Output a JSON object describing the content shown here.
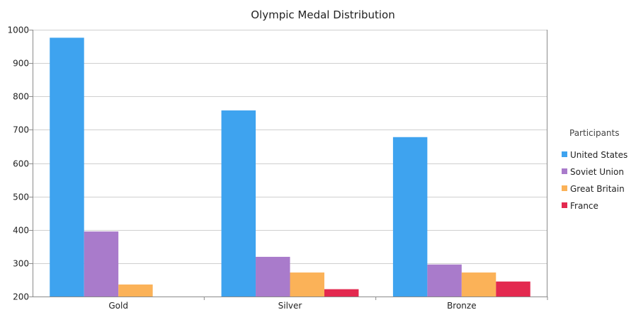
{
  "chart_data": {
    "type": "bar",
    "title": "Olympic Medal Distribution",
    "xlabel": "",
    "ylabel": "",
    "categories": [
      "Gold",
      "Silver",
      "Bronze"
    ],
    "series": [
      {
        "name": "United States",
        "color": "#3ea3ef",
        "values": [
          976,
          758,
          678
        ]
      },
      {
        "name": "Soviet Union",
        "color": "#a97bcb",
        "values": [
          395,
          319,
          296
        ]
      },
      {
        "name": "Great Britain",
        "color": "#fbb258",
        "values": [
          236,
          272,
          272
        ]
      },
      {
        "name": "France",
        "color": "#e3294f",
        "values": [
          null,
          222,
          245
        ]
      }
    ],
    "ylim": [
      200,
      1000
    ],
    "yticks": [
      200,
      300,
      400,
      500,
      600,
      700,
      800,
      900,
      1000
    ],
    "grid": true,
    "legend": {
      "title": "Participants",
      "position": "right"
    }
  }
}
